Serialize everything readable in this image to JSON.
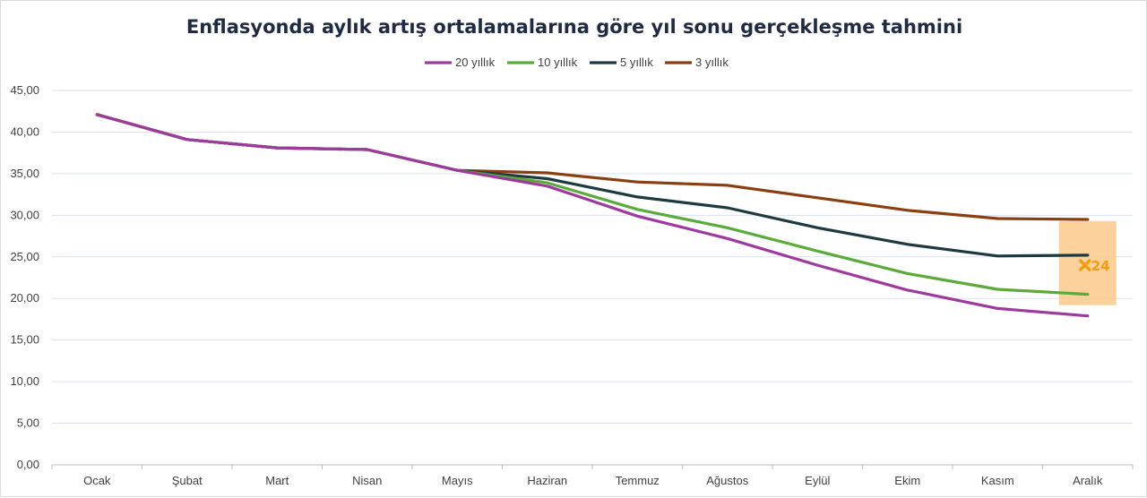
{
  "chart_data": {
    "type": "line",
    "title": "Enflasyonda aylık artış ortalamalarına göre yıl sonu gerçekleşme tahmini",
    "xlabel": "",
    "ylabel": "",
    "categories": [
      "Ocak",
      "Şubat",
      "Mart",
      "Nisan",
      "Mayıs",
      "Haziran",
      "Temmuz",
      "Ağustos",
      "Eylül",
      "Ekim",
      "Kasım",
      "Aralık"
    ],
    "ylim": [
      0,
      45
    ],
    "yticks": [
      "0,00",
      "5,00",
      "10,00",
      "15,00",
      "20,00",
      "25,00",
      "30,00",
      "35,00",
      "40,00",
      "45,00"
    ],
    "grid": true,
    "legend_position": "top",
    "series": [
      {
        "name": "20 yıllık",
        "color": "#9e3a9e",
        "values": [
          42.1,
          39.1,
          38.1,
          37.9,
          35.4,
          33.5,
          29.9,
          27.2,
          24.0,
          21.0,
          18.8,
          17.9
        ]
      },
      {
        "name": "10 yıllık",
        "color": "#5aab3a",
        "values": [
          42.1,
          39.1,
          38.1,
          37.9,
          35.4,
          33.9,
          30.7,
          28.5,
          25.7,
          23.0,
          21.1,
          20.5
        ]
      },
      {
        "name": "5 yıllık",
        "color": "#1c3a40",
        "values": [
          42.1,
          39.1,
          38.1,
          37.9,
          35.4,
          34.4,
          32.2,
          30.9,
          28.5,
          26.5,
          25.1,
          25.2
        ]
      },
      {
        "name": "3 yıllık",
        "color": "#8b3e10",
        "values": [
          42.1,
          39.1,
          38.1,
          37.9,
          35.4,
          35.1,
          34.0,
          33.6,
          32.1,
          30.6,
          29.6,
          29.5
        ]
      }
    ],
    "annotation": {
      "category": "Aralık",
      "value": 24,
      "label": "24",
      "range": [
        19.2,
        29.3
      ],
      "marker_color": "#f39c12",
      "highlight_color": "#fbc98a"
    }
  }
}
